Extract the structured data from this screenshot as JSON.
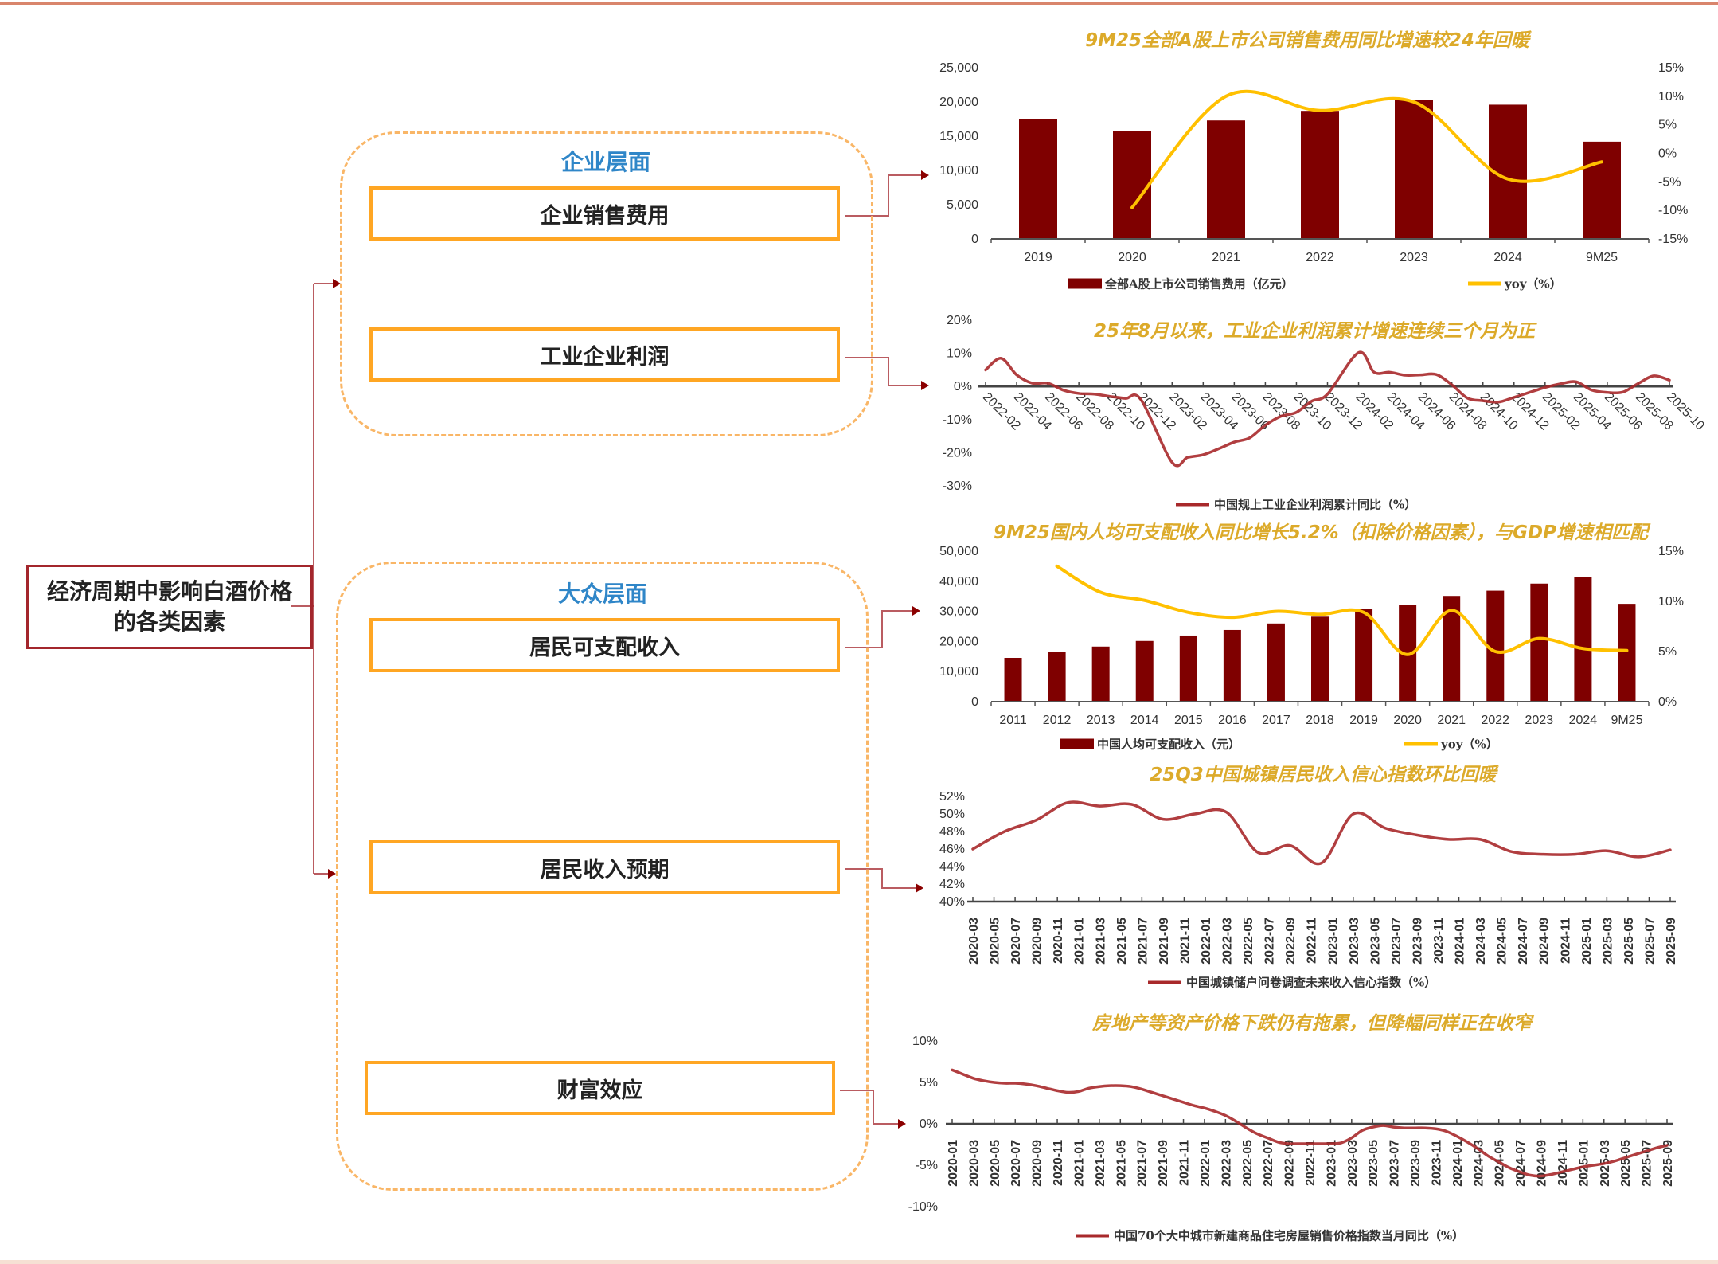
{
  "diagram": {
    "root": "经济周期中影响白酒价格的各类因素",
    "groups": [
      {
        "label": "企业层面",
        "factors": [
          "企业销售费用",
          "工业企业利润"
        ]
      },
      {
        "label": "大众层面",
        "factors": [
          "居民可支配收入",
          "居民收入预期",
          "财富效应"
        ]
      }
    ],
    "colors": {
      "connector": "#a3262c",
      "factor_border": "#ffa623",
      "group_border": "#f9b667",
      "group_label": "#2f86c8",
      "title": "#dcaa2a"
    }
  },
  "chart_data": [
    {
      "type": "bar",
      "title": "9M25全部A股上市公司销售费用同比增速较24年回暖",
      "categories": [
        "2019",
        "2020",
        "2021",
        "2022",
        "2023",
        "2024",
        "9M25"
      ],
      "ylim": [
        0,
        25000
      ],
      "yticks": [
        "0",
        "5,000",
        "10,000",
        "15,000",
        "20,000",
        "25,000"
      ],
      "y2lim": [
        -15,
        15
      ],
      "y2ticks": [
        "-15%",
        "-10%",
        "-5%",
        "0%",
        "5%",
        "10%",
        "15%"
      ],
      "legend_position": "bottom",
      "series": [
        {
          "name": "全部A股上市公司销售费用（亿元）",
          "type": "bar",
          "color": "#7f0000",
          "values": [
            17500,
            15800,
            17300,
            18700,
            20300,
            19600,
            14200
          ]
        },
        {
          "name": "yoy（%）",
          "type": "line",
          "axis": "right",
          "color": "#ffc000",
          "values": [
            null,
            -9.5,
            10.0,
            7.5,
            9.0,
            -4.5,
            -1.5
          ]
        }
      ]
    },
    {
      "type": "line",
      "title": "25年8月以来，工业企业利润累计增速连续三个月为正",
      "ylim": [
        -30,
        20
      ],
      "yticks": [
        "-30%",
        "-20%",
        "-10%",
        "0%",
        "10%",
        "20%"
      ],
      "tick_labels": [
        "2022-02",
        "2022-04",
        "2022-06",
        "2022-08",
        "2022-10",
        "2022-12",
        "2023-02",
        "2023-04",
        "2023-06",
        "2023-08",
        "2023-10",
        "2023-12",
        "2024-02",
        "2024-04",
        "2024-06",
        "2024-08",
        "2024-10",
        "2024-12",
        "2025-02",
        "2025-04",
        "2025-06",
        "2025-08",
        "2025-10"
      ],
      "legend_position": "bottom",
      "series": [
        {
          "name": "中国规上工业企业利润累计同比（%）",
          "color": "#a8292b",
          "x": [
            "2022-02",
            "2022-03",
            "2022-04",
            "2022-05",
            "2022-06",
            "2022-07",
            "2022-08",
            "2022-09",
            "2022-10",
            "2022-11",
            "2022-12",
            "2023-02",
            "2023-03",
            "2023-04",
            "2023-05",
            "2023-06",
            "2023-07",
            "2023-08",
            "2023-09",
            "2023-10",
            "2023-11",
            "2023-12",
            "2024-02",
            "2024-03",
            "2024-04",
            "2024-05",
            "2024-06",
            "2024-07",
            "2024-08",
            "2024-09",
            "2024-10",
            "2024-11",
            "2024-12",
            "2025-02",
            "2025-03",
            "2025-04",
            "2025-05",
            "2025-06",
            "2025-07",
            "2025-08",
            "2025-09",
            "2025-10"
          ],
          "values": [
            5.0,
            8.5,
            3.5,
            1.0,
            1.0,
            -1.1,
            -2.1,
            -2.3,
            -3.0,
            -3.6,
            -4.0,
            -22.9,
            -21.4,
            -20.6,
            -18.8,
            -16.8,
            -15.5,
            -11.7,
            -9.0,
            -7.8,
            -4.4,
            -2.3,
            10.2,
            4.3,
            4.3,
            3.4,
            3.5,
            3.6,
            0.5,
            -3.5,
            -4.3,
            -4.7,
            -3.3,
            -0.3,
            0.8,
            1.4,
            -1.1,
            -1.8,
            -1.7,
            0.9,
            3.2,
            1.9
          ]
        }
      ]
    },
    {
      "type": "bar",
      "title": "9M25国内人均可支配收入同比增长5.2%（扣除价格因素），与GDP增速相匹配",
      "categories": [
        "2011",
        "2012",
        "2013",
        "2014",
        "2015",
        "2016",
        "2017",
        "2018",
        "2019",
        "2020",
        "2021",
        "2022",
        "2023",
        "2024",
        "9M25"
      ],
      "ylim": [
        0,
        50000
      ],
      "yticks": [
        "0",
        "10,000",
        "20,000",
        "30,000",
        "40,000",
        "50,000"
      ],
      "y2lim": [
        0,
        15
      ],
      "y2ticks": [
        "0%",
        "5%",
        "10%",
        "15%"
      ],
      "legend_position": "bottom",
      "series": [
        {
          "name": "中国人均可支配收入（元）",
          "type": "bar",
          "color": "#7f0000",
          "values": [
            14551,
            16510,
            18311,
            20167,
            21966,
            23821,
            25974,
            28228,
            30733,
            32189,
            35128,
            36883,
            39218,
            41314,
            32509
          ]
        },
        {
          "name": "yoy（%）",
          "type": "line",
          "axis": "right",
          "color": "#ffc000",
          "values": [
            null,
            13.5,
            10.9,
            10.1,
            8.9,
            8.4,
            9.0,
            8.7,
            8.9,
            4.7,
            9.1,
            5.0,
            6.3,
            5.3,
            5.1
          ]
        }
      ]
    },
    {
      "type": "line",
      "title": "25Q3中国城镇居民收入信心指数环比回暖",
      "ylim": [
        40,
        52
      ],
      "yticks": [
        "40%",
        "42%",
        "44%",
        "46%",
        "48%",
        "50%",
        "52%"
      ],
      "tick_labels": [
        "2020-03",
        "2020-05",
        "2020-07",
        "2020-09",
        "2020-11",
        "2021-01",
        "2021-03",
        "2021-05",
        "2021-07",
        "2021-09",
        "2021-11",
        "2022-01",
        "2022-03",
        "2022-05",
        "2022-07",
        "2022-09",
        "2022-11",
        "2023-01",
        "2023-03",
        "2023-05",
        "2023-07",
        "2023-09",
        "2023-11",
        "2024-01",
        "2024-03",
        "2024-05",
        "2024-07",
        "2024-09",
        "2024-11",
        "2025-01",
        "2025-03",
        "2025-05",
        "2025-07",
        "2025-09"
      ],
      "legend_position": "bottom",
      "series": [
        {
          "name": "中国城镇储户问卷调查未来收入信心指数（%）",
          "color": "#a8292b",
          "x": [
            "2020-03",
            "2020-06",
            "2020-09",
            "2020-12",
            "2021-03",
            "2021-06",
            "2021-09",
            "2021-12",
            "2022-03",
            "2022-06",
            "2022-09",
            "2022-12",
            "2023-03",
            "2023-06",
            "2023-09",
            "2023-12",
            "2024-03",
            "2024-06",
            "2024-09",
            "2024-12",
            "2025-03",
            "2025-06",
            "2025-09"
          ],
          "values": [
            46.0,
            48.0,
            49.3,
            51.3,
            50.9,
            51.1,
            49.4,
            50.0,
            50.2,
            45.6,
            46.4,
            44.4,
            50.0,
            48.4,
            47.6,
            47.1,
            47.1,
            45.7,
            45.4,
            45.4,
            45.8,
            45.1,
            45.9
          ]
        }
      ]
    },
    {
      "type": "line",
      "title": "房地产等资产价格下跌仍有拖累，但降幅同样正在收窄",
      "ylim": [
        -10,
        10
      ],
      "yticks": [
        "-10%",
        "-5%",
        "0%",
        "5%",
        "10%"
      ],
      "tick_labels": [
        "2020-01",
        "2020-03",
        "2020-05",
        "2020-07",
        "2020-09",
        "2020-11",
        "2021-01",
        "2021-03",
        "2021-05",
        "2021-07",
        "2021-09",
        "2021-11",
        "2022-01",
        "2022-03",
        "2022-05",
        "2022-07",
        "2022-09",
        "2022-11",
        "2023-01",
        "2023-03",
        "2023-05",
        "2023-07",
        "2023-09",
        "2023-11",
        "2024-01",
        "2024-03",
        "2024-05",
        "2024-07",
        "2024-09",
        "2024-11",
        "2025-01",
        "2025-03",
        "2025-05",
        "2025-07",
        "2025-09"
      ],
      "legend_position": "bottom",
      "series": [
        {
          "name": "中国70个大中城市新建商品住宅房屋销售价格指数当月同比（%）",
          "color": "#a8292b",
          "x_start": "2020-01",
          "values": [
            6.5,
            6.0,
            5.5,
            5.2,
            5.0,
            4.9,
            4.9,
            4.8,
            4.6,
            4.3,
            4.0,
            3.8,
            3.9,
            4.3,
            4.5,
            4.6,
            4.6,
            4.5,
            4.2,
            3.8,
            3.4,
            3.0,
            2.6,
            2.2,
            1.9,
            1.5,
            1.0,
            0.3,
            -0.5,
            -1.2,
            -1.7,
            -2.2,
            -2.4,
            -2.4,
            -2.4,
            -2.4,
            -2.4,
            -2.3,
            -1.7,
            -0.8,
            -0.4,
            -0.2,
            -0.4,
            -0.5,
            -0.5,
            -0.5,
            -0.6,
            -0.9,
            -1.5,
            -2.2,
            -3.0,
            -3.9,
            -4.6,
            -5.3,
            -5.8,
            -6.2,
            -6.3,
            -6.1,
            -5.8,
            -5.5,
            -5.2,
            -5.0,
            -4.8,
            -4.5,
            -4.1,
            -3.7,
            -3.3,
            -2.9,
            -2.6
          ]
        }
      ]
    }
  ]
}
